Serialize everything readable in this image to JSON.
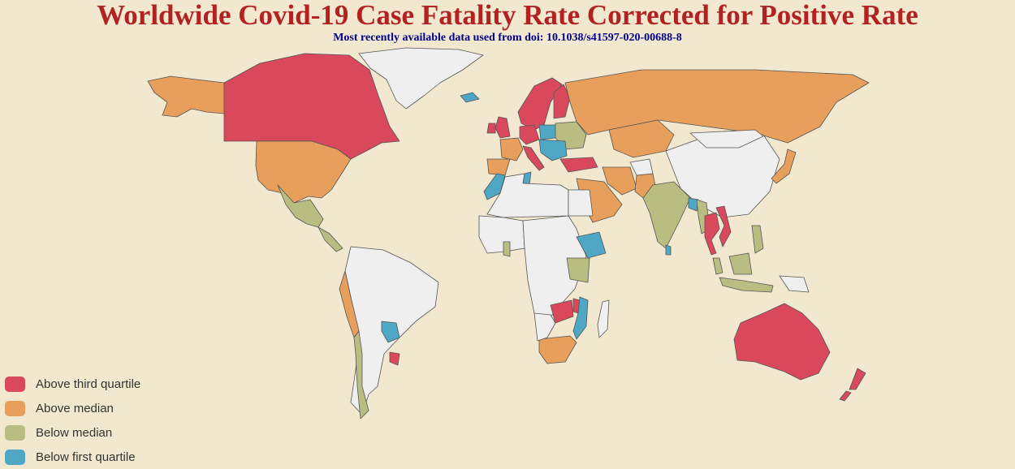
{
  "title": "Worldwide Covid-19 Case Fatality Rate Corrected for Positive Rate",
  "subtitle": "Most recently available data used from doi: 10.1038/s41597-020-00688-8",
  "colors": {
    "background": "#f1e8cf",
    "no_data": "#efefef",
    "above_third_quartile": "#d9495b",
    "above_median": "#e89f5c",
    "below_median": "#b9bd82",
    "below_first_quartile": "#4ea7c4"
  },
  "legend": [
    {
      "label": "Above third quartile",
      "category": "above_third_quartile"
    },
    {
      "label": "Above median",
      "category": "above_median"
    },
    {
      "label": "Below median",
      "category": "below_median"
    },
    {
      "label": "Below first quartile",
      "category": "below_first_quartile"
    }
  ],
  "countries": [
    {
      "name": "Greenland",
      "category": "no_data"
    },
    {
      "name": "Alaska",
      "category": "above_median"
    },
    {
      "name": "Canada",
      "category": "above_third_quartile"
    },
    {
      "name": "United States",
      "category": "above_median"
    },
    {
      "name": "Mexico",
      "category": "below_median"
    },
    {
      "name": "Central America",
      "category": "below_median"
    },
    {
      "name": "South America",
      "category": "no_data"
    },
    {
      "name": "Peru",
      "category": "above_median"
    },
    {
      "name": "Chile",
      "category": "below_median"
    },
    {
      "name": "Paraguay",
      "category": "below_first_quartile"
    },
    {
      "name": "Uruguay",
      "category": "above_third_quartile"
    },
    {
      "name": "Iceland",
      "category": "below_first_quartile"
    },
    {
      "name": "United Kingdom",
      "category": "above_third_quartile"
    },
    {
      "name": "Ireland",
      "category": "above_third_quartile"
    },
    {
      "name": "Scandinavia",
      "category": "above_third_quartile"
    },
    {
      "name": "Finland",
      "category": "above_third_quartile"
    },
    {
      "name": "France",
      "category": "above_median"
    },
    {
      "name": "Iberia",
      "category": "above_median"
    },
    {
      "name": "Central Europe",
      "category": "above_third_quartile"
    },
    {
      "name": "Poland",
      "category": "below_first_quartile"
    },
    {
      "name": "Eastern Europe",
      "category": "below_median"
    },
    {
      "name": "Balkans",
      "category": "below_first_quartile"
    },
    {
      "name": "Italy",
      "category": "above_third_quartile"
    },
    {
      "name": "Turkey",
      "category": "above_third_quartile"
    },
    {
      "name": "Russia",
      "category": "above_median"
    },
    {
      "name": "Kazakhstan",
      "category": "above_median"
    },
    {
      "name": "China",
      "category": "no_data"
    },
    {
      "name": "Mongolia",
      "category": "no_data"
    },
    {
      "name": "Japan",
      "category": "above_median"
    },
    {
      "name": "Iran",
      "category": "above_median"
    },
    {
      "name": "Saudi Arabia",
      "category": "above_median"
    },
    {
      "name": "Pakistan",
      "category": "above_median"
    },
    {
      "name": "Afghanistan",
      "category": "no_data"
    },
    {
      "name": "India",
      "category": "below_median"
    },
    {
      "name": "Bangladesh",
      "category": "below_first_quartile"
    },
    {
      "name": "Myanmar",
      "category": "below_median"
    },
    {
      "name": "Thailand",
      "category": "above_third_quartile"
    },
    {
      "name": "Vietnam",
      "category": "above_third_quartile"
    },
    {
      "name": "Malaysia",
      "category": "below_median"
    },
    {
      "name": "Indonesia",
      "category": "below_median"
    },
    {
      "name": "Philippines",
      "category": "below_median"
    },
    {
      "name": "Papua New Guinea",
      "category": "no_data"
    },
    {
      "name": "Sri Lanka",
      "category": "below_first_quartile"
    },
    {
      "name": "Morocco",
      "category": "below_first_quartile"
    },
    {
      "name": "Tunisia",
      "category": "below_first_quartile"
    },
    {
      "name": "North Africa",
      "category": "no_data"
    },
    {
      "name": "Egypt",
      "category": "no_data"
    },
    {
      "name": "West Africa",
      "category": "no_data"
    },
    {
      "name": "Ghana",
      "category": "below_median"
    },
    {
      "name": "Central Africa",
      "category": "no_data"
    },
    {
      "name": "Ethiopia",
      "category": "below_first_quartile"
    },
    {
      "name": "Kenya",
      "category": "below_median"
    },
    {
      "name": "Zambia",
      "category": "above_third_quartile"
    },
    {
      "name": "Malawi",
      "category": "above_third_quartile"
    },
    {
      "name": "Mozambique",
      "category": "below_first_quartile"
    },
    {
      "name": "South Africa",
      "category": "above_median"
    },
    {
      "name": "Namibia",
      "category": "no_data"
    },
    {
      "name": "Madagascar",
      "category": "no_data"
    },
    {
      "name": "Australia",
      "category": "above_third_quartile"
    },
    {
      "name": "New Zealand",
      "category": "above_third_quartile"
    }
  ]
}
